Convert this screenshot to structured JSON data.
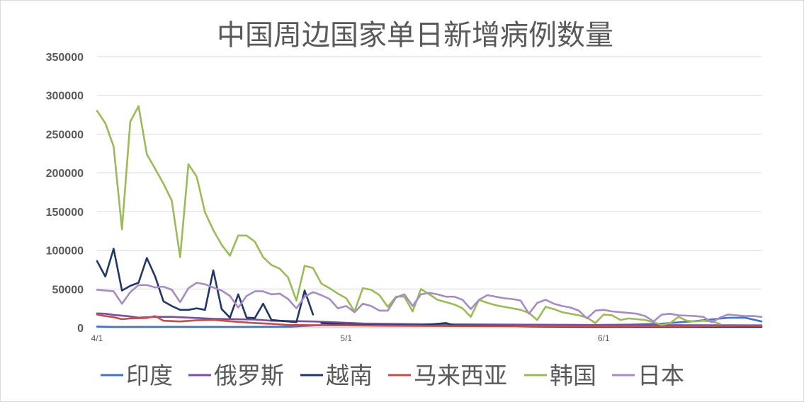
{
  "chart_data": {
    "type": "line",
    "title": "中国周边国家单日新增病例数量",
    "xlabel": "",
    "ylabel": "",
    "ylim": [
      0,
      350000
    ],
    "yticks": [
      0,
      50000,
      100000,
      150000,
      200000,
      250000,
      300000,
      350000
    ],
    "ytick_labels": [
      "0",
      "50000",
      "100000",
      "150000",
      "200000",
      "250000",
      "300000",
      "350000"
    ],
    "x_start": "2022-04-01",
    "x_end": "2022-06-20",
    "x_ticks": [
      {
        "date": "2022-04-01",
        "label": "4/1"
      },
      {
        "date": "2022-05-01",
        "label": "5/1"
      },
      {
        "date": "2022-06-01",
        "label": "6/1"
      }
    ],
    "grid": true,
    "legend_position": "bottom",
    "series": [
      {
        "name": "印度",
        "color": "#4472c4",
        "values": [
          [
            "2022-04-01",
            1500
          ],
          [
            "2022-04-03",
            1000
          ],
          [
            "2022-04-10",
            1100
          ],
          [
            "2022-04-18",
            1000
          ],
          [
            "2022-04-24",
            1300
          ],
          [
            "2022-04-28",
            3300
          ],
          [
            "2022-05-01",
            3200
          ],
          [
            "2022-05-08",
            3400
          ],
          [
            "2022-05-15",
            2500
          ],
          [
            "2022-05-22",
            2300
          ],
          [
            "2022-05-29",
            2700
          ],
          [
            "2022-06-01",
            3700
          ],
          [
            "2022-06-04",
            3900
          ],
          [
            "2022-06-08",
            5200
          ],
          [
            "2022-06-12",
            8500
          ],
          [
            "2022-06-16",
            12800
          ],
          [
            "2022-06-18",
            13000
          ],
          [
            "2022-06-20",
            8000
          ]
        ]
      },
      {
        "name": "俄罗斯",
        "color": "#7b4f9d",
        "values": [
          [
            "2022-04-01",
            18500
          ],
          [
            "2022-04-02",
            18000
          ],
          [
            "2022-04-03",
            16500
          ],
          [
            "2022-04-05",
            14500
          ],
          [
            "2022-04-06",
            13000
          ],
          [
            "2022-04-08",
            14000
          ],
          [
            "2022-04-10",
            14000
          ],
          [
            "2022-04-15",
            11500
          ],
          [
            "2022-04-20",
            10500
          ],
          [
            "2022-04-22",
            9000
          ],
          [
            "2022-04-27",
            8000
          ],
          [
            "2022-04-30",
            6800
          ],
          [
            "2022-05-03",
            5500
          ],
          [
            "2022-05-10",
            4500
          ],
          [
            "2022-05-17",
            4200
          ],
          [
            "2022-05-24",
            3800
          ],
          [
            "2022-05-31",
            3500
          ],
          [
            "2022-06-07",
            3300
          ],
          [
            "2022-06-14",
            3200
          ],
          [
            "2022-06-20",
            3000
          ]
        ]
      },
      {
        "name": "越南",
        "color": "#1f3864",
        "values": [
          [
            "2022-04-01",
            86000
          ],
          [
            "2022-04-02",
            66000
          ],
          [
            "2022-04-03",
            102000
          ],
          [
            "2022-04-04",
            48000
          ],
          [
            "2022-04-05",
            54000
          ],
          [
            "2022-04-06",
            58000
          ],
          [
            "2022-04-07",
            90000
          ],
          [
            "2022-04-08",
            66000
          ],
          [
            "2022-04-09",
            34000
          ],
          [
            "2022-04-10",
            28000
          ],
          [
            "2022-04-11",
            23000
          ],
          [
            "2022-04-12",
            23000
          ],
          [
            "2022-04-13",
            25000
          ],
          [
            "2022-04-14",
            23000
          ],
          [
            "2022-04-15",
            74000
          ],
          [
            "2022-04-16",
            24000
          ],
          [
            "2022-04-17",
            13000
          ],
          [
            "2022-04-18",
            43000
          ],
          [
            "2022-04-19",
            13000
          ],
          [
            "2022-04-20",
            12500
          ],
          [
            "2022-04-21",
            31000
          ],
          [
            "2022-04-22",
            10000
          ],
          [
            "2022-04-23",
            9000
          ],
          [
            "2022-04-24",
            8000
          ],
          [
            "2022-04-25",
            7000
          ],
          [
            "2022-04-26",
            48000
          ],
          [
            "2022-04-27",
            17000
          ]
        ]
      },
      {
        "name": "越南",
        "color": "#1f3864",
        "values": [
          [
            "2022-04-28",
            6000
          ],
          [
            "2022-05-01",
            4000
          ],
          [
            "2022-05-05",
            3000
          ],
          [
            "2022-05-10",
            3000
          ],
          [
            "2022-05-13",
            6000
          ],
          [
            "2022-05-14",
            3000
          ],
          [
            "2022-05-20",
            2500
          ],
          [
            "2022-05-24",
            1500
          ],
          [
            "2022-05-30",
            1000
          ],
          [
            "2022-06-10",
            1000
          ],
          [
            "2022-06-20",
            1000
          ]
        ]
      },
      {
        "name": "马来西亚",
        "color": "#c0504d",
        "values": [
          [
            "2022-04-01",
            17000
          ],
          [
            "2022-04-02",
            15000
          ],
          [
            "2022-04-03",
            13500
          ],
          [
            "2022-04-04",
            11000
          ],
          [
            "2022-04-05",
            12000
          ],
          [
            "2022-04-07",
            12500
          ],
          [
            "2022-04-08",
            15000
          ],
          [
            "2022-04-09",
            9000
          ],
          [
            "2022-04-11",
            8000
          ],
          [
            "2022-04-13",
            9500
          ],
          [
            "2022-04-15",
            10000
          ],
          [
            "2022-04-18",
            7500
          ],
          [
            "2022-04-20",
            6000
          ],
          [
            "2022-04-22",
            5000
          ],
          [
            "2022-04-24",
            3500
          ],
          [
            "2022-04-28",
            3200
          ],
          [
            "2022-05-01",
            3000
          ],
          [
            "2022-05-06",
            2500
          ],
          [
            "2022-05-12",
            2200
          ],
          [
            "2022-05-18",
            2000
          ],
          [
            "2022-05-24",
            1800
          ],
          [
            "2022-05-30",
            1700
          ],
          [
            "2022-06-05",
            1800
          ],
          [
            "2022-06-10",
            1700
          ],
          [
            "2022-06-15",
            2200
          ],
          [
            "2022-06-18",
            2500
          ],
          [
            "2022-06-20",
            2400
          ]
        ]
      },
      {
        "name": "韩国",
        "color": "#9bbb59",
        "values": [
          [
            "2022-04-01",
            280000
          ],
          [
            "2022-04-02",
            264000
          ],
          [
            "2022-04-03",
            234000
          ],
          [
            "2022-04-04",
            127000
          ],
          [
            "2022-04-05",
            266000
          ],
          [
            "2022-04-06",
            286000
          ],
          [
            "2022-04-07",
            224000
          ],
          [
            "2022-04-08",
            205000
          ],
          [
            "2022-04-09",
            186000
          ],
          [
            "2022-04-10",
            164000
          ],
          [
            "2022-04-11",
            91000
          ],
          [
            "2022-04-12",
            211000
          ],
          [
            "2022-04-13",
            195000
          ],
          [
            "2022-04-14",
            149000
          ],
          [
            "2022-04-15",
            126000
          ],
          [
            "2022-04-16",
            107000
          ],
          [
            "2022-04-17",
            93000
          ],
          [
            "2022-04-18",
            119000
          ],
          [
            "2022-04-19",
            119000
          ],
          [
            "2022-04-20",
            111000
          ],
          [
            "2022-04-21",
            91000
          ],
          [
            "2022-04-22",
            81000
          ],
          [
            "2022-04-23",
            76000
          ],
          [
            "2022-04-24",
            65000
          ],
          [
            "2022-04-25",
            35000
          ],
          [
            "2022-04-26",
            80000
          ],
          [
            "2022-04-27",
            77000
          ],
          [
            "2022-04-28",
            57000
          ],
          [
            "2022-04-29",
            51000
          ],
          [
            "2022-04-30",
            44000
          ],
          [
            "2022-05-01",
            38000
          ],
          [
            "2022-05-02",
            21000
          ],
          [
            "2022-05-03",
            51000
          ],
          [
            "2022-05-04",
            49000
          ],
          [
            "2022-05-05",
            42000
          ],
          [
            "2022-05-06",
            27000
          ],
          [
            "2022-05-07",
            40000
          ],
          [
            "2022-05-08",
            40000
          ],
          [
            "2022-05-09",
            21000
          ],
          [
            "2022-05-10",
            50000
          ],
          [
            "2022-05-11",
            43000
          ],
          [
            "2022-05-12",
            36000
          ],
          [
            "2022-05-13",
            33000
          ],
          [
            "2022-05-14",
            30000
          ],
          [
            "2022-05-15",
            25000
          ],
          [
            "2022-05-16",
            14000
          ],
          [
            "2022-05-17",
            36000
          ],
          [
            "2022-05-18",
            32000
          ],
          [
            "2022-05-19",
            29000
          ],
          [
            "2022-05-20",
            27000
          ],
          [
            "2022-05-21",
            25000
          ],
          [
            "2022-05-22",
            23000
          ],
          [
            "2022-05-23",
            19000
          ],
          [
            "2022-05-24",
            10000
          ],
          [
            "2022-05-25",
            27000
          ],
          [
            "2022-05-26",
            24000
          ],
          [
            "2022-05-27",
            20000
          ],
          [
            "2022-05-28",
            18000
          ],
          [
            "2022-05-29",
            16000
          ],
          [
            "2022-05-30",
            13000
          ],
          [
            "2022-05-31",
            6000
          ],
          [
            "2022-06-01",
            17000
          ],
          [
            "2022-06-02",
            16000
          ],
          [
            "2022-06-03",
            10000
          ],
          [
            "2022-06-04",
            12000
          ],
          [
            "2022-06-05",
            11000
          ],
          [
            "2022-06-06",
            10000
          ],
          [
            "2022-06-07",
            7000
          ],
          [
            "2022-06-08",
            3500
          ],
          [
            "2022-06-09",
            6000
          ],
          [
            "2022-06-10",
            14000
          ],
          [
            "2022-06-11",
            9000
          ],
          [
            "2022-06-12",
            8000
          ],
          [
            "2022-06-13",
            9000
          ],
          [
            "2022-06-14",
            8000
          ],
          [
            "2022-06-15",
            5000
          ]
        ]
      },
      {
        "name": "日本",
        "color": "#a68cc0",
        "values": [
          [
            "2022-04-01",
            49000
          ],
          [
            "2022-04-02",
            48000
          ],
          [
            "2022-04-03",
            47000
          ],
          [
            "2022-04-04",
            31000
          ],
          [
            "2022-04-05",
            46000
          ],
          [
            "2022-04-06",
            55000
          ],
          [
            "2022-04-07",
            55000
          ],
          [
            "2022-04-08",
            52000
          ],
          [
            "2022-04-09",
            53000
          ],
          [
            "2022-04-10",
            49000
          ],
          [
            "2022-04-11",
            33000
          ],
          [
            "2022-04-12",
            51000
          ],
          [
            "2022-04-13",
            58000
          ],
          [
            "2022-04-14",
            56000
          ],
          [
            "2022-04-15",
            52000
          ],
          [
            "2022-04-16",
            48000
          ],
          [
            "2022-04-17",
            41000
          ],
          [
            "2022-04-18",
            26000
          ],
          [
            "2022-04-19",
            41000
          ],
          [
            "2022-04-20",
            47000
          ],
          [
            "2022-04-21",
            47000
          ],
          [
            "2022-04-22",
            43000
          ],
          [
            "2022-04-23",
            44000
          ],
          [
            "2022-04-24",
            37000
          ],
          [
            "2022-04-25",
            25000
          ],
          [
            "2022-04-26",
            40000
          ],
          [
            "2022-04-27",
            46000
          ],
          [
            "2022-04-28",
            42000
          ],
          [
            "2022-04-29",
            37000
          ],
          [
            "2022-04-30",
            25000
          ],
          [
            "2022-05-01",
            28000
          ],
          [
            "2022-05-02",
            20000
          ],
          [
            "2022-05-03",
            31000
          ],
          [
            "2022-05-04",
            28000
          ],
          [
            "2022-05-05",
            22000
          ],
          [
            "2022-05-06",
            22000
          ],
          [
            "2022-05-07",
            39000
          ],
          [
            "2022-05-08",
            43000
          ],
          [
            "2022-05-09",
            28000
          ],
          [
            "2022-05-10",
            43000
          ],
          [
            "2022-05-11",
            45000
          ],
          [
            "2022-05-12",
            43000
          ],
          [
            "2022-05-13",
            40000
          ],
          [
            "2022-05-14",
            40000
          ],
          [
            "2022-05-15",
            36000
          ],
          [
            "2022-05-16",
            24000
          ],
          [
            "2022-05-17",
            36000
          ],
          [
            "2022-05-18",
            42000
          ],
          [
            "2022-05-19",
            40000
          ],
          [
            "2022-05-20",
            38000
          ],
          [
            "2022-05-21",
            37000
          ],
          [
            "2022-05-22",
            35000
          ],
          [
            "2022-05-23",
            18000
          ],
          [
            "2022-05-24",
            32000
          ],
          [
            "2022-05-25",
            36000
          ],
          [
            "2022-05-26",
            31000
          ],
          [
            "2022-05-27",
            28000
          ],
          [
            "2022-05-28",
            26000
          ],
          [
            "2022-05-29",
            22000
          ],
          [
            "2022-05-30",
            12000
          ],
          [
            "2022-05-31",
            22000
          ],
          [
            "2022-06-01",
            23000
          ],
          [
            "2022-06-02",
            21000
          ],
          [
            "2022-06-03",
            20000
          ],
          [
            "2022-06-04",
            19000
          ],
          [
            "2022-06-05",
            18000
          ],
          [
            "2022-06-06",
            15000
          ],
          [
            "2022-06-07",
            8000
          ],
          [
            "2022-06-08",
            17000
          ],
          [
            "2022-06-09",
            18000
          ],
          [
            "2022-06-10",
            16000
          ],
          [
            "2022-06-11",
            15500
          ],
          [
            "2022-06-12",
            15000
          ],
          [
            "2022-06-13",
            14000
          ],
          [
            "2022-06-14",
            7000
          ],
          [
            "2022-06-15",
            13000
          ],
          [
            "2022-06-16",
            17000
          ],
          [
            "2022-06-17",
            16000
          ],
          [
            "2022-06-18",
            15000
          ],
          [
            "2022-06-19",
            15000
          ],
          [
            "2022-06-20",
            14000
          ]
        ]
      }
    ],
    "legend": [
      {
        "name": "印度",
        "color": "#4472c4"
      },
      {
        "name": "俄罗斯",
        "color": "#7b4f9d"
      },
      {
        "name": "越南",
        "color": "#1f3864"
      },
      {
        "name": "马来西亚",
        "color": "#c0504d"
      },
      {
        "name": "韩国",
        "color": "#9bbb59"
      },
      {
        "name": "日本",
        "color": "#a68cc0"
      }
    ]
  }
}
